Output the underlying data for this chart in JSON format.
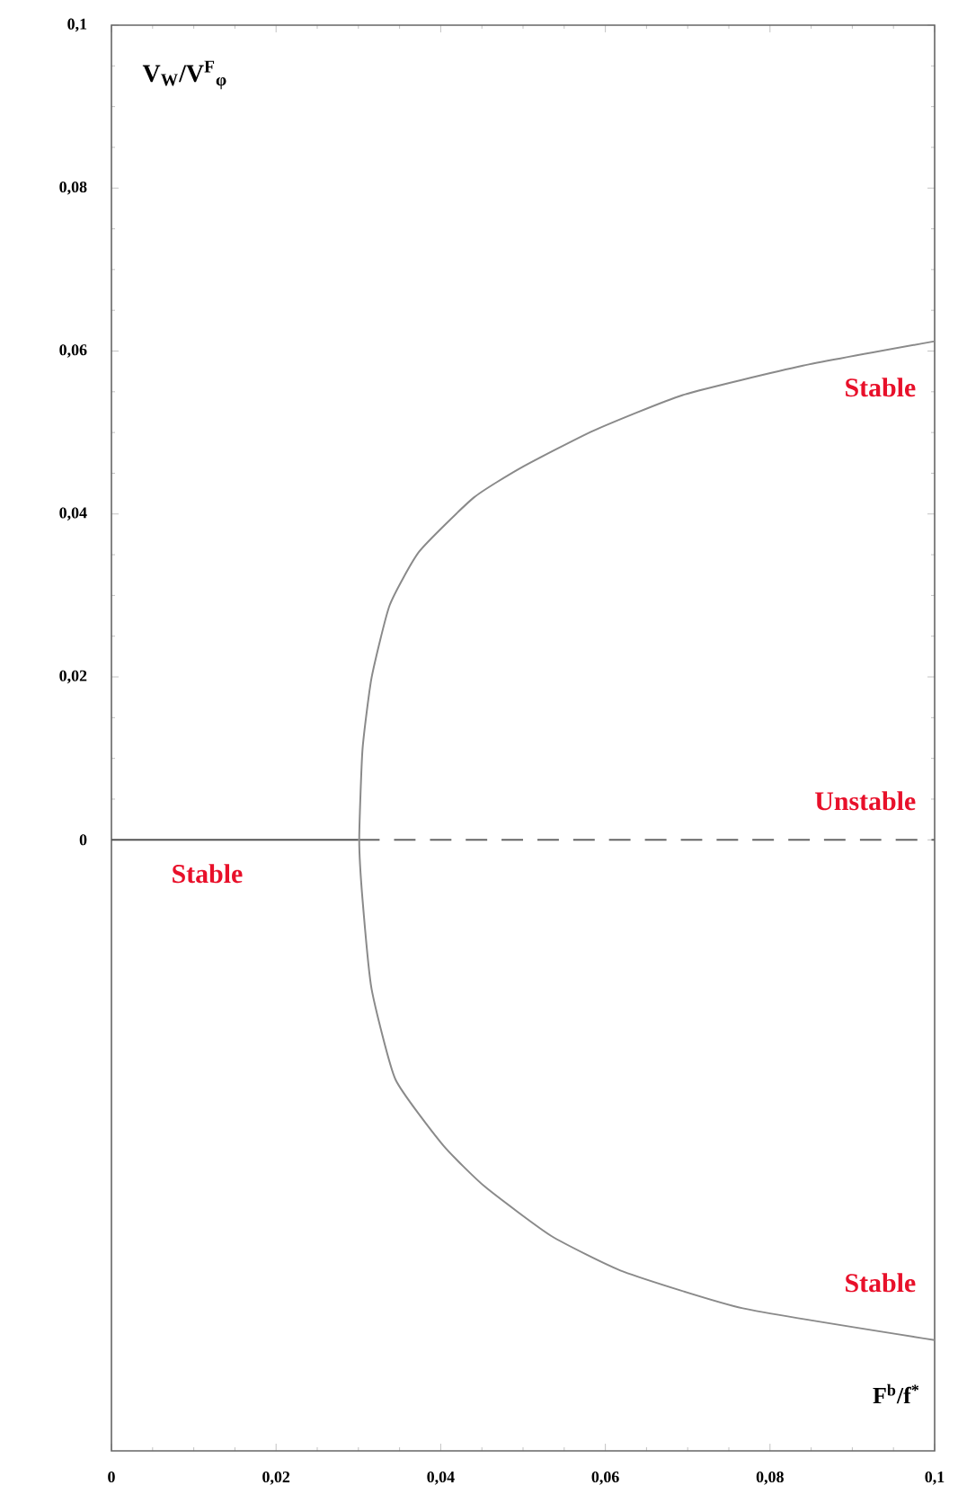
{
  "chart_data": {
    "type": "line",
    "xlabel": "F$^{b}$/f$^{*}$",
    "ylabel": "V$_{W}$/V$^{F}$$_{φ}$",
    "xlim": [
      0,
      0.1
    ],
    "ylim": [
      -0.075,
      0.1
    ],
    "xticks": [
      0,
      {
        "value": 0.02,
        "label": "0,02"
      },
      {
        "value": 0.04,
        "label": "0,04"
      },
      {
        "value": 0.06,
        "label": "0,06"
      },
      {
        "value": 0.08,
        "label": "0,08"
      },
      {
        "value": 0.1,
        "label": "0,1"
      }
    ],
    "yticks": [
      0,
      {
        "value": 0.02,
        "label": "0,02"
      },
      {
        "value": 0.04,
        "label": "0,04"
      },
      {
        "value": 0.06,
        "label": "0,06"
      },
      {
        "value": 0.08,
        "label": "0,08"
      },
      {
        "value": 0.1,
        "label": "0,1"
      }
    ],
    "tick_labels": true,
    "grid": false,
    "marker": "none",
    "series": [
      {
        "color": "#555555",
        "line_style": "solid",
        "x": [
          0,
          0.03
        ],
        "values": [
          0,
          0
        ]
      },
      {
        "color": "#666666",
        "line_style": "dashed",
        "x": [
          0.03,
          0.1
        ],
        "values": [
          0,
          0
        ]
      },
      {
        "color": "#8a8a8a",
        "line_style": "solid",
        "x": [
          0.1,
          0.0767,
          0.0622,
          0.0534,
          0.0454,
          0.0403,
          0.0345,
          0.0316,
          0.0305,
          0.0301,
          0.0305,
          0.0316,
          0.0338,
          0.0374,
          0.044,
          0.0498,
          0.0585,
          0.0694,
          0.084,
          0.1
        ],
        "values": [
          -0.0614,
          -0.0575,
          -0.053,
          -0.0486,
          -0.0426,
          -0.0375,
          -0.0294,
          -0.0183,
          -0.0073,
          0,
          0.0111,
          0.0199,
          0.0288,
          0.0354,
          0.042,
          0.0457,
          0.0502,
          0.0546,
          0.0582,
          0.0612
        ]
      }
    ],
    "annotations": [
      "Stable",
      "Unstable",
      "Stable",
      "Stable"
    ]
  }
}
